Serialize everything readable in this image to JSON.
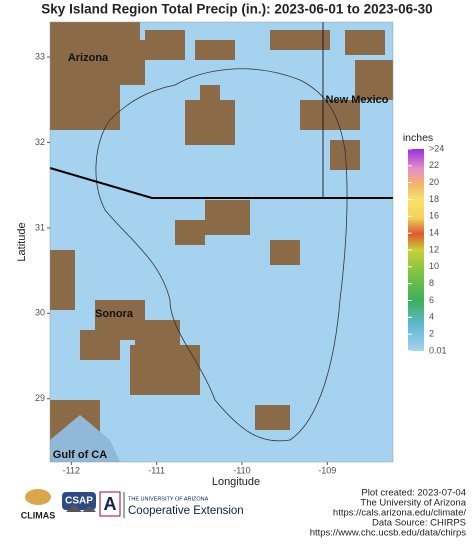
{
  "chart_data": {
    "type": "map",
    "title": "Sky Island Region Total Precip (in.): 2023-06-01 to 2023-06-30",
    "x_label": "Longitude",
    "y_label": "Latitude",
    "xlim": [
      -112.25,
      -108.23
    ],
    "ylim": [
      28.26,
      33.41
    ],
    "xticks": [
      -112,
      -111,
      -110,
      -109
    ],
    "yticks": [
      29,
      30,
      31,
      32,
      33
    ],
    "places": [
      "Arizona",
      "New Mexico",
      "Sonora",
      "Gulf of CA"
    ],
    "legend": {
      "title": "inches",
      "lim": [
        0,
        24
      ],
      "ticks": [
        {
          "value": 0.01,
          "label": "0.01"
        },
        2,
        4,
        6,
        8,
        10,
        12,
        14,
        16,
        18,
        20,
        22,
        {
          "value": 24,
          "label": ">24"
        }
      ]
    }
  },
  "footer": {
    "logos": [
      "CLIMAS",
      "CSAP",
      "THE UNIVERSITY OF ARIZONA",
      "Cooperative Extension"
    ],
    "credits": [
      "Plot created: 2023-07-04",
      "The University of Arizona",
      "https://cals.arizona.edu/climate/",
      "Data Source: CHIRPS",
      "https://www.chc.ucsb.edu/data/chirps"
    ]
  }
}
